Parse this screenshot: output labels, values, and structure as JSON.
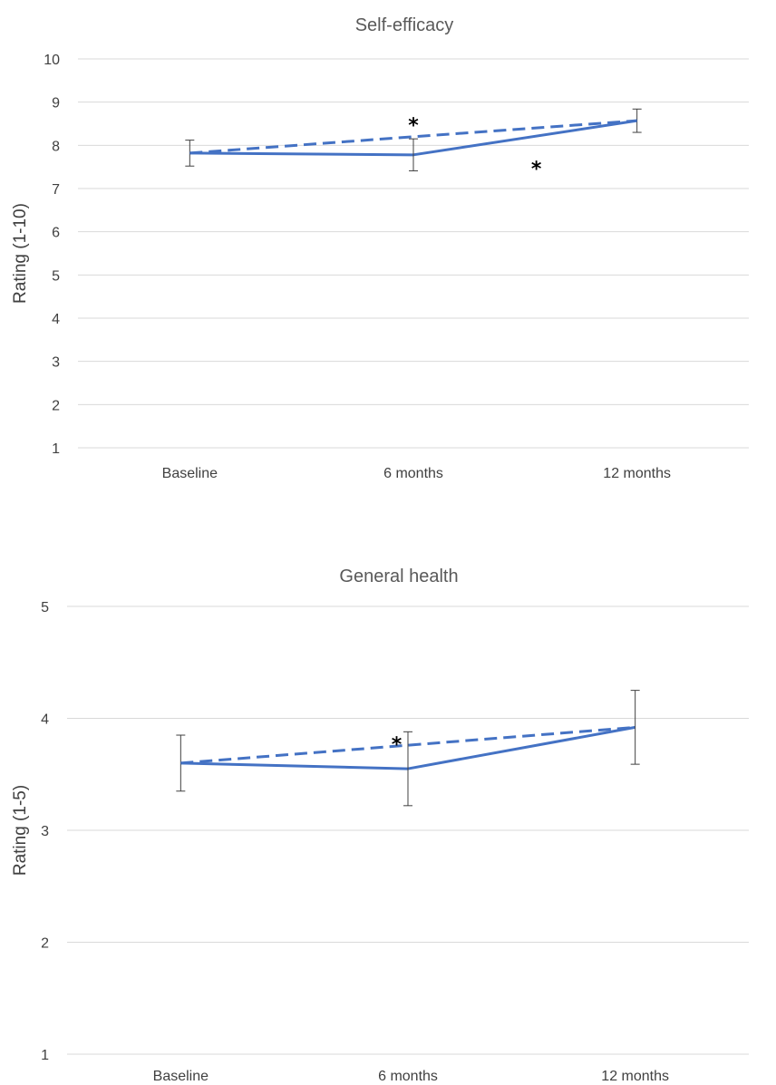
{
  "chart_data": [
    {
      "type": "line",
      "title": "Self-efficacy",
      "ylabel": "Rating (1-10)",
      "xlabel": "",
      "categories": [
        "Baseline",
        "6 months",
        "12 months"
      ],
      "ylim": [
        1,
        10
      ],
      "yticks": [
        1,
        2,
        3,
        4,
        5,
        6,
        7,
        8,
        9,
        10
      ],
      "grid": true,
      "series": [
        {
          "style": "solid",
          "color": "#4472C4",
          "values": [
            7.82,
            7.78,
            8.57
          ],
          "error": [
            0.3,
            0.37,
            0.27
          ]
        },
        {
          "style": "dashed",
          "color": "#4472C4",
          "values": [
            7.82,
            8.2,
            8.57
          ]
        }
      ],
      "annotations": [
        {
          "text": "*",
          "x": 1.0,
          "y": 8.6
        },
        {
          "text": "*",
          "x": 1.55,
          "y": 7.6
        }
      ]
    },
    {
      "type": "line",
      "title": "General health",
      "ylabel": "Rating (1-5)",
      "xlabel": "",
      "categories": [
        "Baseline",
        "6 months",
        "12 months"
      ],
      "ylim": [
        1,
        5
      ],
      "yticks": [
        1,
        2,
        3,
        4,
        5
      ],
      "grid": true,
      "series": [
        {
          "style": "solid",
          "color": "#4472C4",
          "values": [
            3.6,
            3.55,
            3.92
          ],
          "error": [
            0.25,
            0.33,
            0.33
          ]
        },
        {
          "style": "dashed",
          "color": "#4472C4",
          "values": [
            3.6,
            3.76,
            3.92
          ]
        }
      ],
      "annotations": [
        {
          "text": "*",
          "x": 0.95,
          "y": 3.82
        }
      ]
    }
  ]
}
